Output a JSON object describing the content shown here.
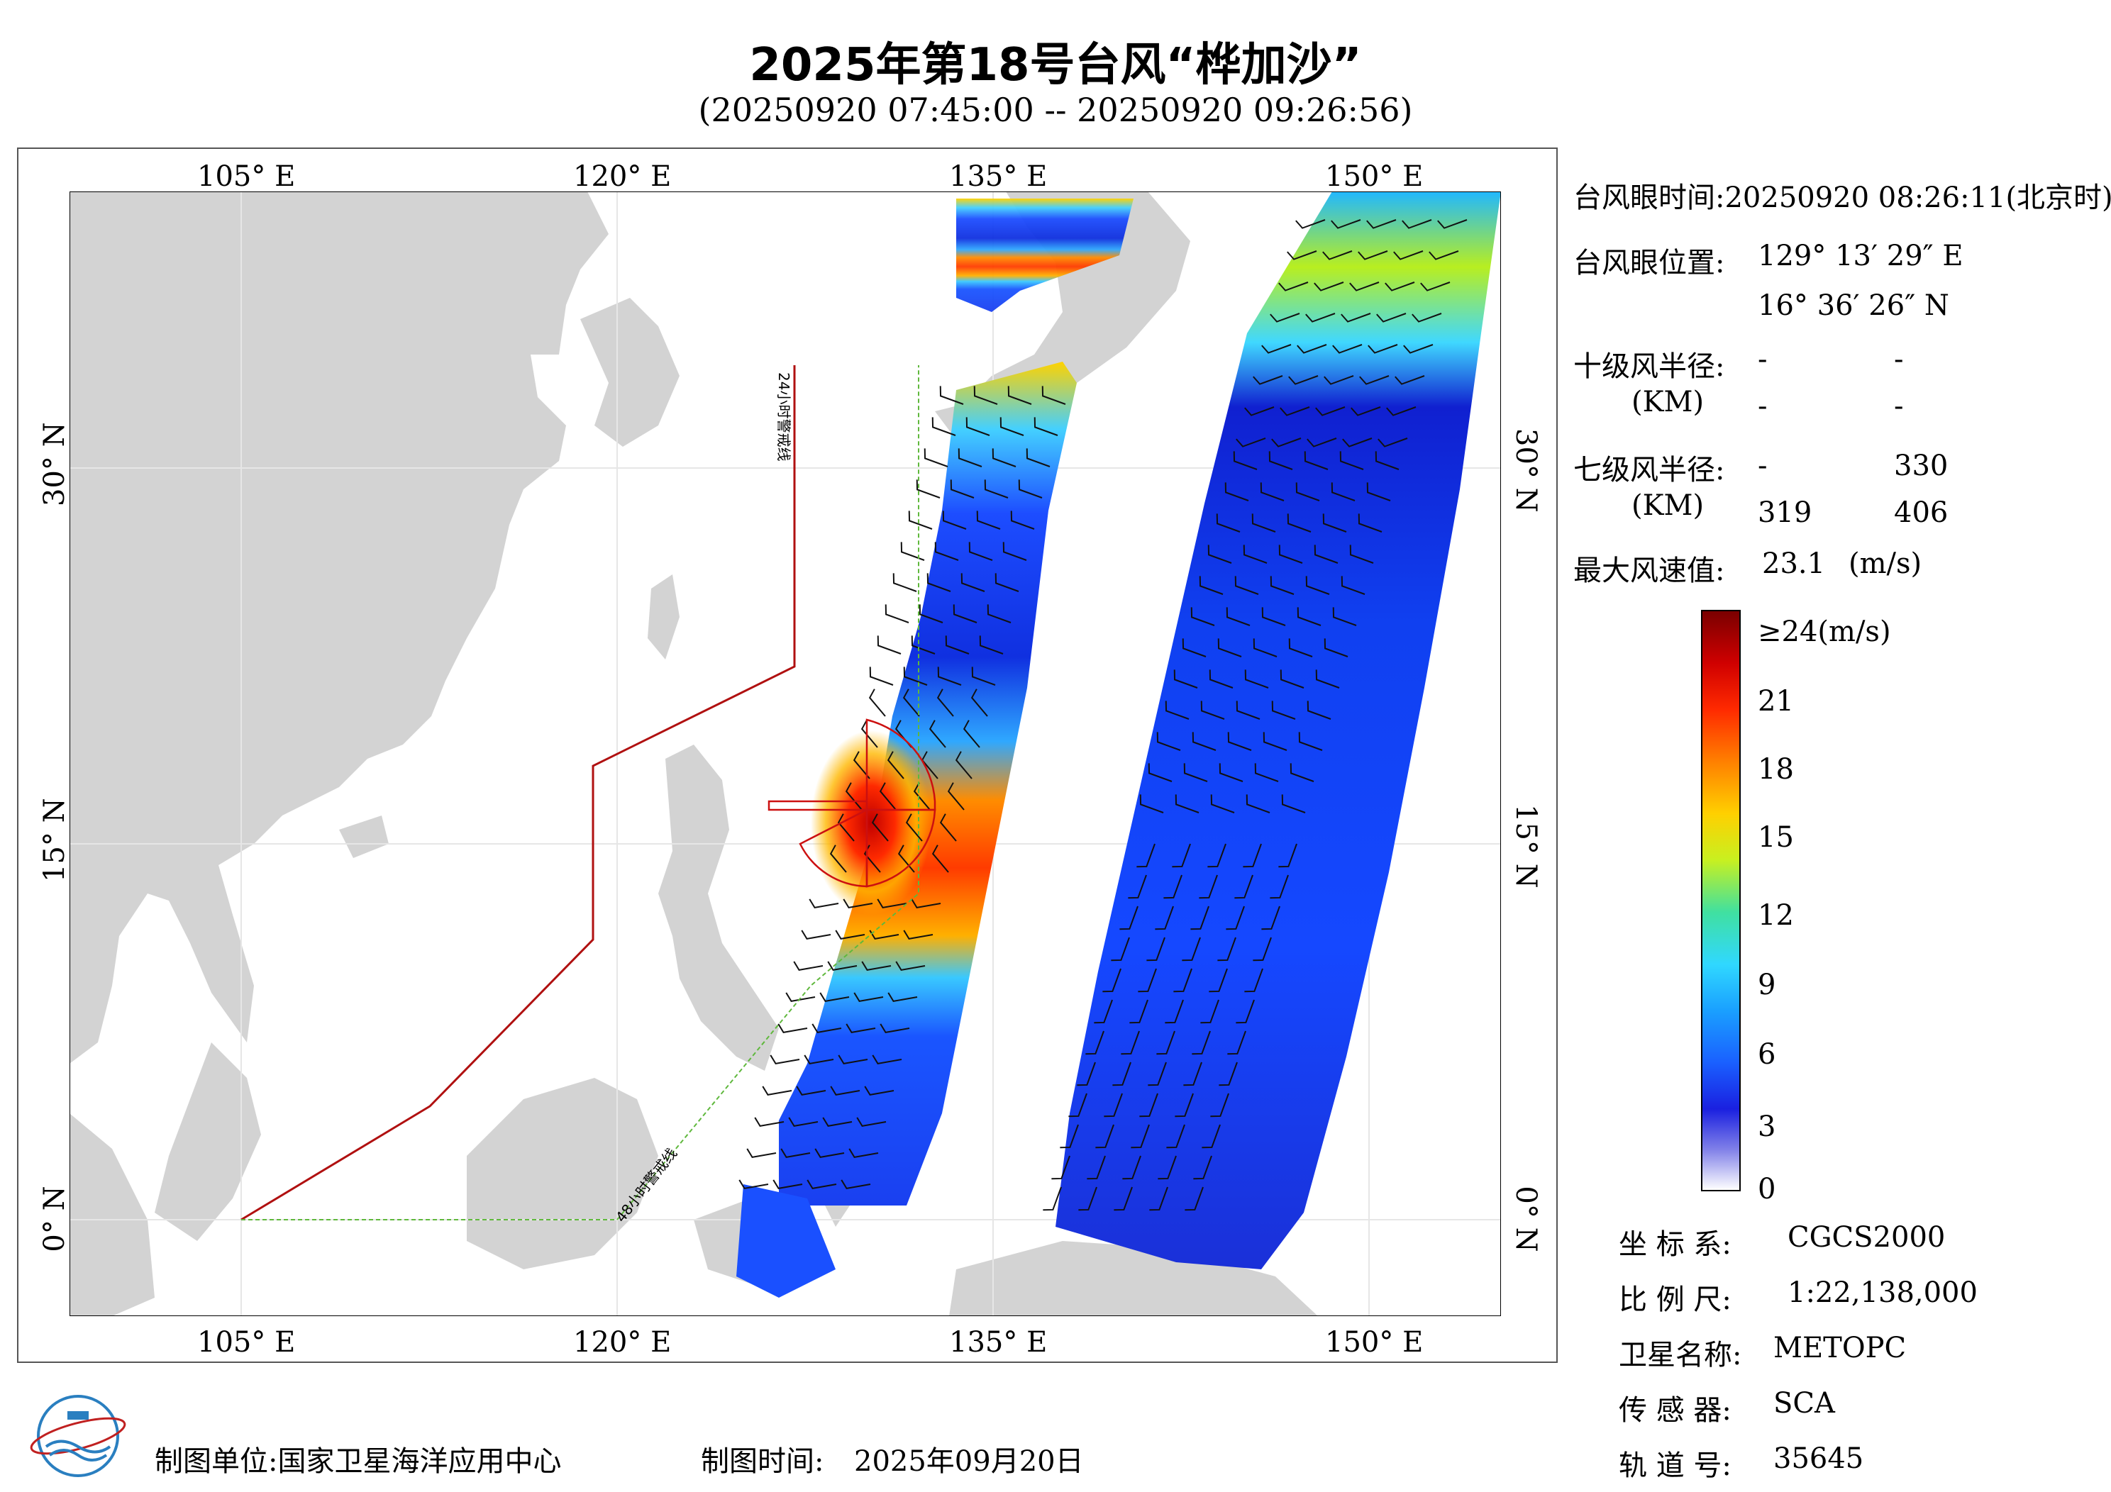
{
  "header": {
    "title": "2025年第18号台风“桦加沙”",
    "subtitle": "(20250920 07:45:00 -- 20250920 09:26:56)"
  },
  "map": {
    "lon_ticks": [
      "105° E",
      "120° E",
      "135° E",
      "150° E"
    ],
    "lat_ticks": [
      "30° N",
      "15° N",
      "0° N"
    ],
    "line_24h_label": "24小时警戒线",
    "line_48h_label": "48小时警戒线",
    "colors": {
      "land": "#d3d3d3",
      "ocean": "#ffffff",
      "warning_24h": "#b01010",
      "warning_48h": "#5fb83c",
      "wind_radius": "#cc1010"
    }
  },
  "info": {
    "eye_time_label": "台风眼时间:",
    "eye_time_value": "20250920 08:26:11(北京时)",
    "eye_pos_label": "台风眼位置:",
    "eye_lon": "129° 13′ 29″ E",
    "eye_lat": "16° 36′ 26″ N",
    "r10_label": "十级风半径:",
    "km_label": "(KM)",
    "r10_values": [
      "-",
      "-",
      "-",
      "-"
    ],
    "r7_label": "七级风半径:",
    "r7_values": [
      "-",
      "330",
      "319",
      "406"
    ],
    "max_wind_label": "最大风速值:",
    "max_wind_value": "23.1",
    "max_wind_unit": "(m/s)"
  },
  "colorbar": {
    "top_label": "≥24(m/s)",
    "ticks": [
      "21",
      "18",
      "15",
      "12",
      "9",
      "6",
      "3",
      "0"
    ]
  },
  "metadata": {
    "coord_label": "坐 标 系:",
    "coord_value": "CGCS2000",
    "scale_label": "比 例 尺:",
    "scale_value": "1:22,138,000",
    "sat_label": "卫星名称:",
    "sat_value": "METOPC",
    "sensor_label": "传 感 器:",
    "sensor_value": "SCA",
    "orbit_label": "轨 道 号:",
    "orbit_value": "35645"
  },
  "footer": {
    "org_label": "制图单位:",
    "org_value": "国家卫星海洋应用中心",
    "date_label": "制图时间:",
    "date_value": "2025年09月20日"
  }
}
